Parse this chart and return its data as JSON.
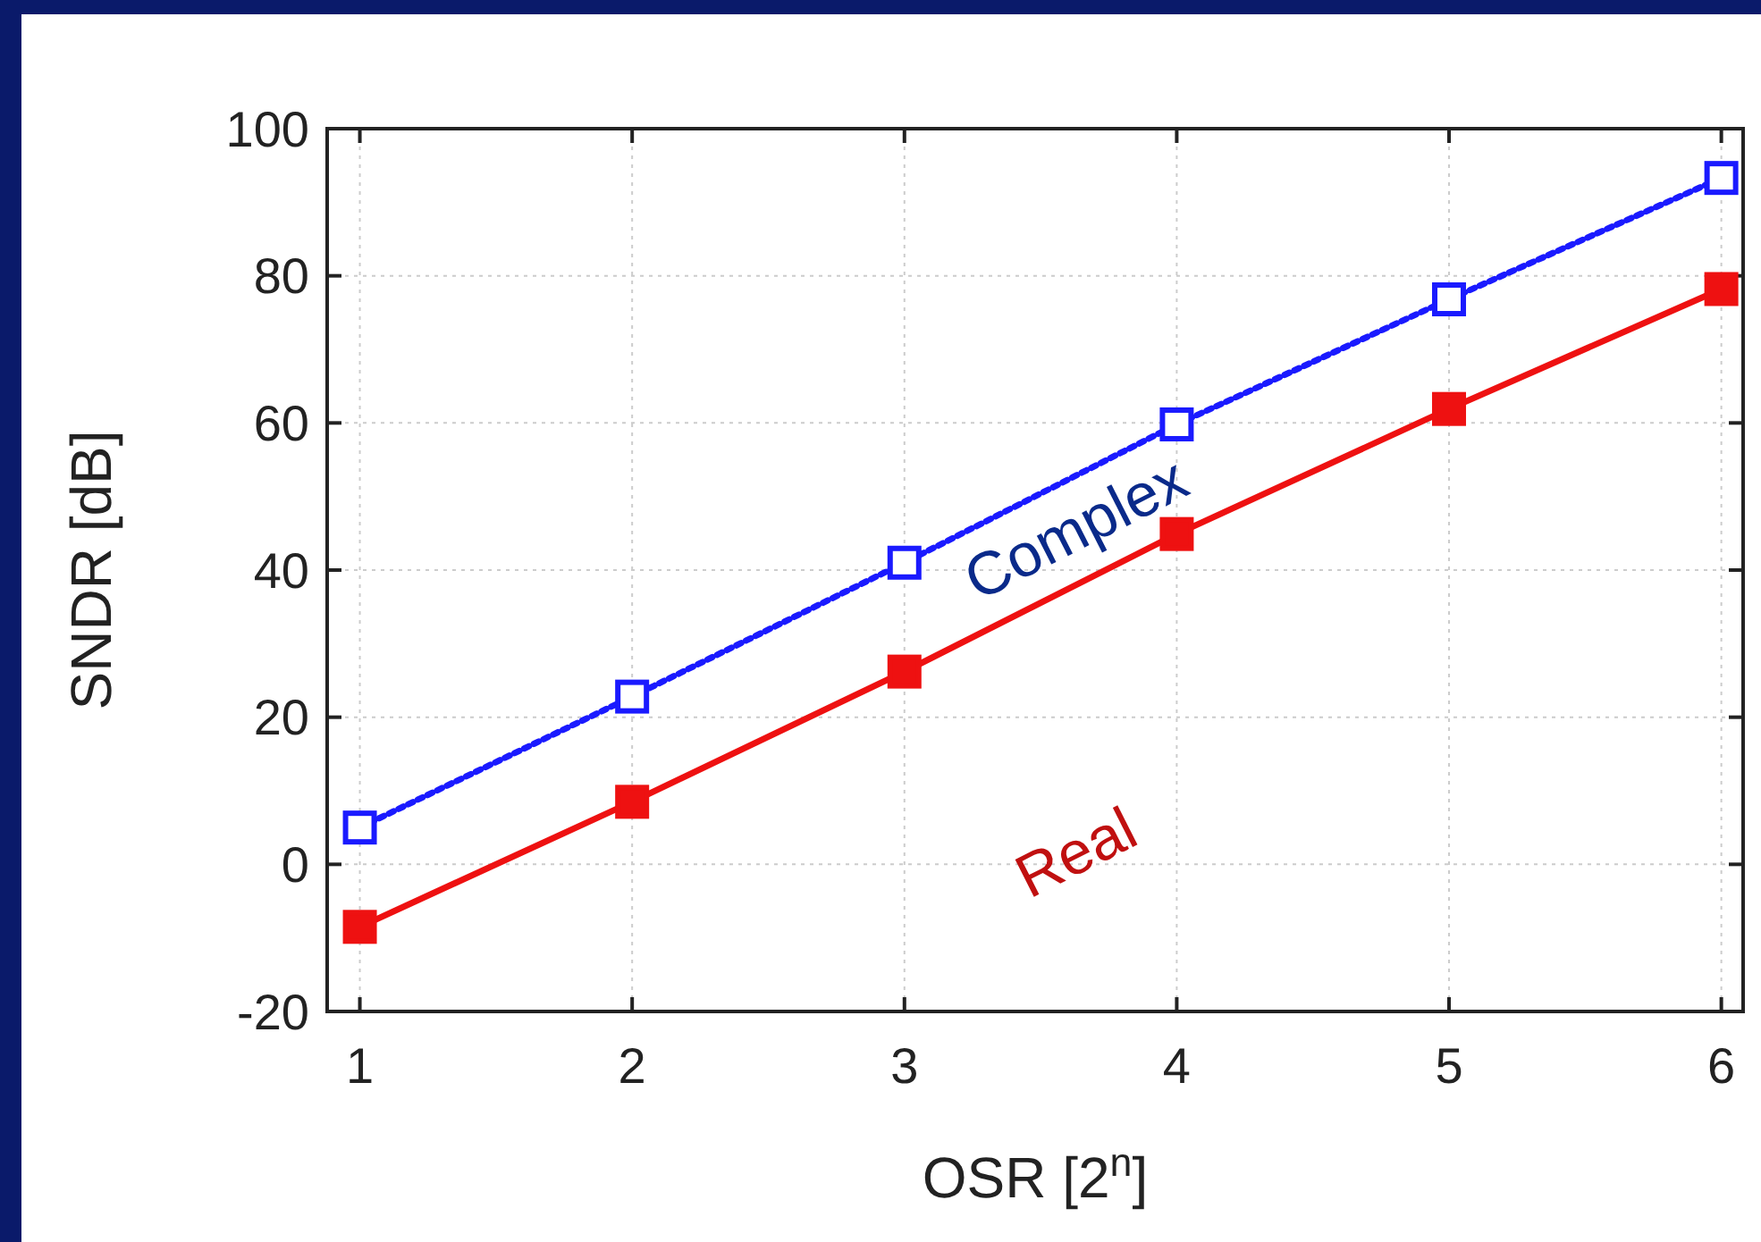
{
  "chart_data": {
    "type": "line",
    "xlabel": "OSR [2$^{n}$]",
    "ylabel": "SNDR [dB]",
    "x": [
      1,
      2,
      3,
      4,
      5,
      6
    ],
    "series": [
      {
        "name": "Complex",
        "color": "#1a1aff",
        "values": [
          5,
          22.8,
          41,
          59.8,
          76.8,
          93.3
        ],
        "marker": "square",
        "line_style": "dotted"
      },
      {
        "name": "Real",
        "color": "#ee1111",
        "values": [
          -8.5,
          8.5,
          26.2,
          44.9,
          61.9,
          78.2
        ],
        "marker": "square",
        "line_style": "solid"
      }
    ],
    "xlim": [
      0.88,
      6.08
    ],
    "xticks": [
      1,
      2,
      3,
      4,
      5,
      6
    ],
    "ylim": [
      -20,
      100
    ],
    "yticks": [
      -20,
      0,
      20,
      40,
      60,
      80,
      100
    ],
    "grid": true
  }
}
